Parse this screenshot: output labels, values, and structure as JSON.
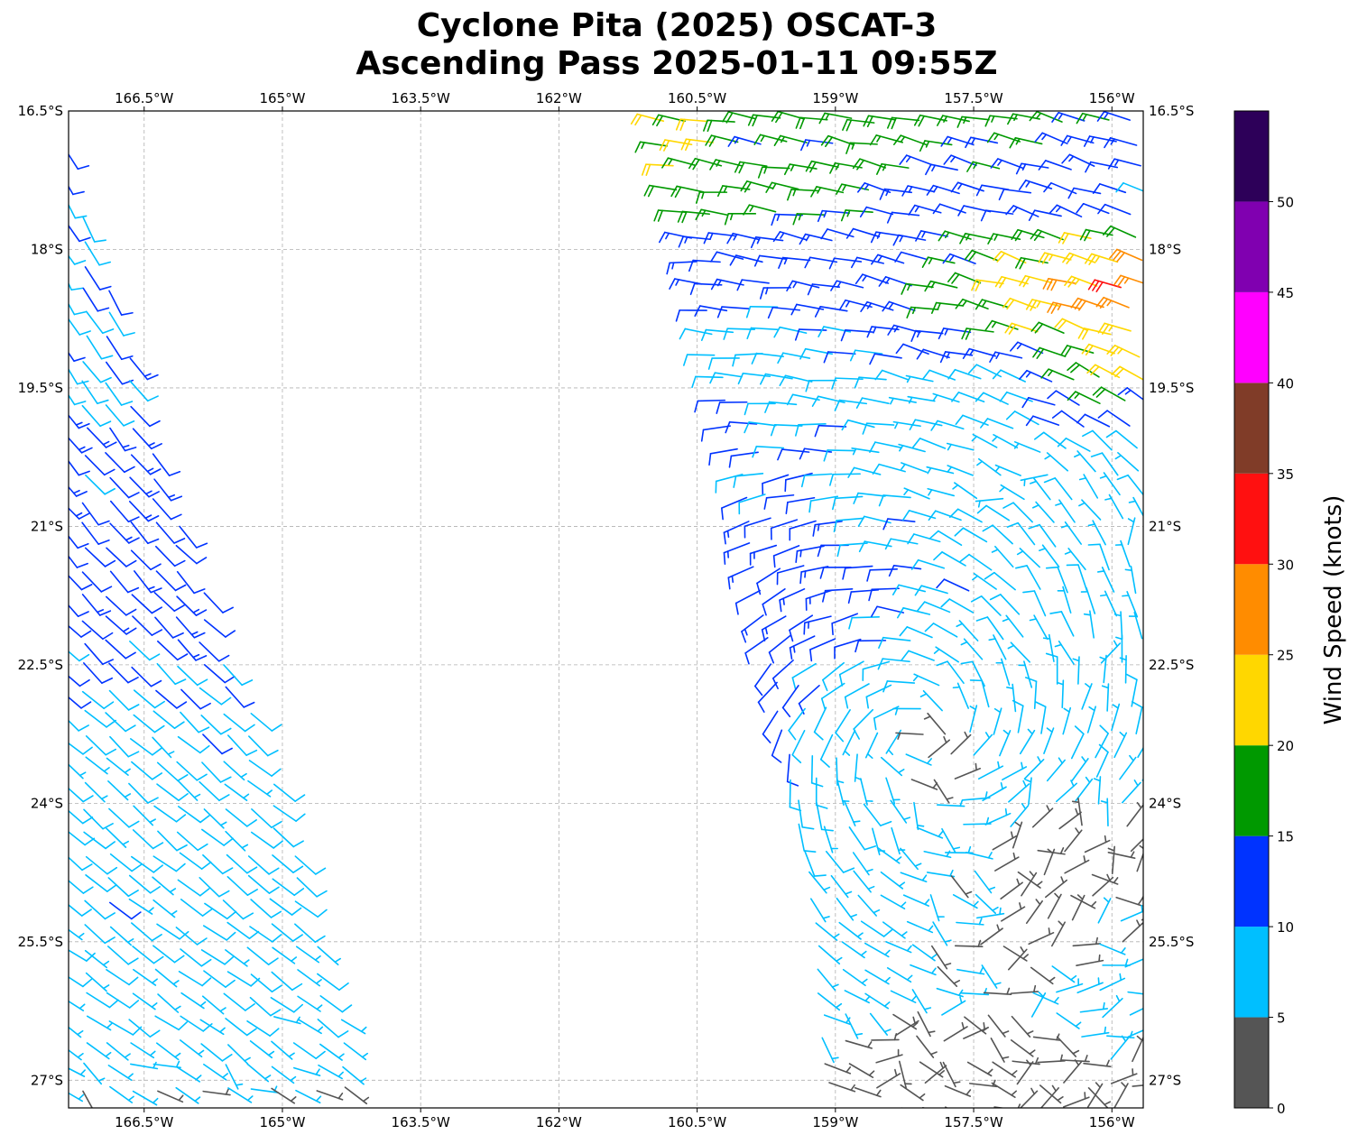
{
  "chart_data": {
    "type": "wind-barb-map",
    "title": [
      "Cyclone Pita (2025) OSCAT-3",
      "Ascending Pass 2025-01-11 09:55Z"
    ],
    "xlim_lon_west": [
      167.32,
      155.66
    ],
    "ylim_lat_south": [
      16.5,
      27.3
    ],
    "x_ticks": [
      166.5,
      165,
      163.5,
      162,
      160.5,
      159,
      157.5,
      156
    ],
    "x_tick_labels": [
      "166.5°W",
      "165°W",
      "163.5°W",
      "162°W",
      "160.5°W",
      "159°W",
      "157.5°W",
      "156°W"
    ],
    "y_ticks": [
      16.5,
      18,
      19.5,
      21,
      22.5,
      24,
      25.5,
      27
    ],
    "y_tick_labels": [
      "16.5°S",
      "18°S",
      "19.5°S",
      "21°S",
      "22.5°S",
      "24°S",
      "25.5°S",
      "27°S"
    ],
    "grid": true,
    "colorbar": {
      "label": "Wind Speed (knots)",
      "bounds": [
        0,
        5,
        10,
        15,
        20,
        25,
        30,
        35,
        40,
        45,
        50,
        55
      ],
      "tick_values": [
        0,
        5,
        10,
        15,
        20,
        25,
        30,
        35,
        40,
        45,
        50
      ],
      "tick_labels": [
        "0",
        "5",
        "10",
        "15",
        "20",
        "25",
        "30",
        "35",
        "40",
        "45",
        "50"
      ],
      "colors": [
        "#555555",
        "#00bfff",
        "#0033ff",
        "#009900",
        "#ffd700",
        "#ff8c00",
        "#ff1010",
        "#803c28",
        "#ff00ff",
        "#8000b0",
        "#2d0059"
      ]
    },
    "cyclone_center": {
      "lon_west": 158.0,
      "lat_south": 23.3
    },
    "east_swath": {
      "west_edge": [
        [
          16.5,
          160.9
        ],
        [
          20.2,
          160.07
        ],
        [
          22.6,
          159.68
        ],
        [
          25.0,
          159.25
        ],
        [
          27.3,
          159.05
        ]
      ],
      "speed_grid_lons_west": [
        161,
        160,
        159,
        158,
        157,
        156
      ],
      "speed_grid_lats_south": [
        16.5,
        17.5,
        18,
        18.5,
        19,
        19.5,
        20,
        20.5,
        21,
        21.5,
        22,
        22.5,
        23,
        23.5,
        24,
        24.5,
        25,
        25.5,
        26,
        26.5,
        27
      ],
      "speed_knots": [
        [
          22,
          17,
          17,
          17,
          17,
          17
        ],
        [
          17,
          17,
          17,
          13,
          12,
          9
        ],
        [
          13,
          13,
          12,
          13,
          18,
          23
        ],
        [
          12,
          12,
          12,
          15,
          21,
          30
        ],
        [
          9,
          8,
          9,
          12,
          17,
          23
        ],
        [
          9,
          9,
          8,
          6,
          9,
          20
        ],
        [
          12,
          12,
          10,
          7,
          8,
          9
        ],
        [
          16,
          11,
          9,
          7,
          5,
          8
        ],
        [
          null,
          13,
          12,
          9,
          8,
          6
        ],
        [
          null,
          12,
          12,
          10,
          8,
          7
        ],
        [
          null,
          14,
          12,
          9,
          8,
          7
        ],
        [
          null,
          12,
          10,
          8,
          7,
          6
        ],
        [
          null,
          12,
          9,
          7,
          7,
          7
        ],
        [
          null,
          12,
          8,
          4,
          7,
          8
        ],
        [
          null,
          11,
          8,
          6,
          6,
          6
        ],
        [
          null,
          null,
          7,
          6,
          4,
          4
        ],
        [
          null,
          null,
          7,
          6,
          4,
          4
        ],
        [
          null,
          null,
          7,
          5,
          4,
          5
        ],
        [
          null,
          null,
          7,
          6,
          5,
          6
        ],
        [
          null,
          null,
          5,
          4,
          4,
          6
        ],
        [
          null,
          null,
          4,
          3,
          3,
          4
        ]
      ]
    },
    "west_swath": {
      "east_edge": [
        [
          16.9,
          167.3
        ],
        [
          17.9,
          167.0
        ],
        [
          20.2,
          166.35
        ],
        [
          22.6,
          165.5
        ],
        [
          25.0,
          164.7
        ],
        [
          27.3,
          164.07
        ]
      ],
      "lats_south": [
        17,
        18,
        19,
        20,
        21,
        22,
        23,
        24,
        25,
        26,
        27,
        27.3
      ],
      "speed_knots": [
        12,
        9,
        11,
        12,
        12,
        12,
        9,
        8,
        9,
        8,
        6,
        4
      ],
      "direction_from_deg": [
        150,
        150,
        145,
        140,
        138,
        135,
        132,
        130,
        128,
        126,
        125,
        125
      ]
    }
  }
}
